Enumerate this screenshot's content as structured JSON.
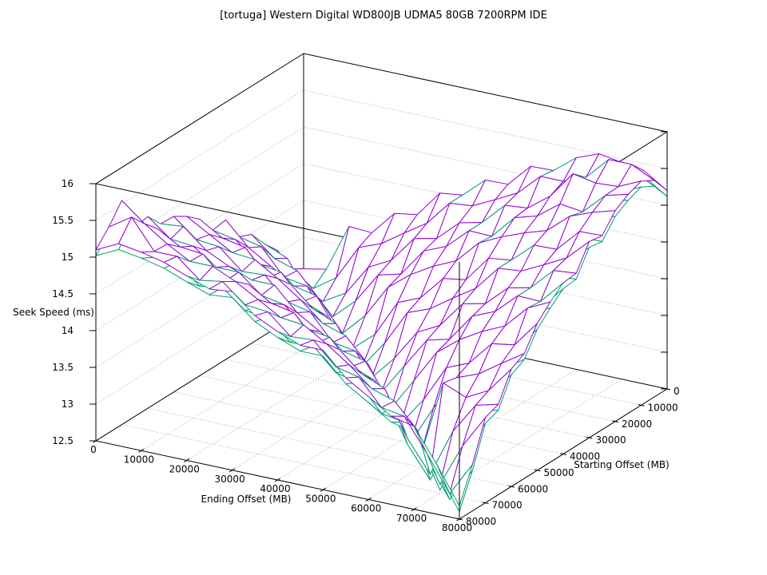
{
  "chart_data": {
    "type": "surface3d",
    "title": "[tortuga] Western Digital WD800JB UDMA5 80GB 7200RPM IDE",
    "xlabel": "Ending Offset (MB)",
    "ylabel": "Starting Offset (MB)",
    "zlabel": "Seek Speed (ms)",
    "x_ticks": [
      0,
      10000,
      20000,
      30000,
      40000,
      50000,
      60000,
      70000,
      80000
    ],
    "y_ticks": [
      0,
      10000,
      20000,
      30000,
      40000,
      50000,
      60000,
      70000,
      80000
    ],
    "z_ticks": [
      12.5,
      13,
      13.5,
      14,
      14.5,
      15,
      15.5,
      16
    ],
    "zlim": [
      12.5,
      16
    ],
    "grid": "dotted",
    "hidden3d": true,
    "legend": "none",
    "colors": {
      "surface_top": "#9400D3",
      "surface_underside": "#009E73",
      "gridline": "#a6a6a6",
      "border": "#000000",
      "background": "#ffffff",
      "text": "#000000"
    },
    "shadow_surface_offset": -0.08,
    "x": [
      0,
      5000,
      10000,
      15000,
      20000,
      25000,
      30000,
      35000,
      40000,
      45000,
      50000,
      55000,
      60000,
      65000,
      70000,
      75000,
      80000
    ],
    "y": [
      0,
      5000,
      10000,
      15000,
      20000,
      25000,
      30000,
      35000,
      40000,
      45000,
      50000,
      55000,
      60000,
      65000,
      70000,
      75000,
      80000
    ],
    "z_grid": [
      [
        13.07,
        13.18,
        13.54,
        13.74,
        13.98,
        14.06,
        14.4,
        14.37,
        14.63,
        14.78,
        14.89,
        14.9,
        15.11,
        15.07,
        15.55,
        15.3,
        15.1
      ],
      [
        13.13,
        12.98,
        13.13,
        13.61,
        13.72,
        13.99,
        14.09,
        14.31,
        14.44,
        14.6,
        14.64,
        14.93,
        14.87,
        15.12,
        15.3,
        15.5,
        15.25
      ],
      [
        13.78,
        13.19,
        12.98,
        13.12,
        13.62,
        13.64,
        13.9,
        14.04,
        14.38,
        14.42,
        14.61,
        14.67,
        14.84,
        14.94,
        15.09,
        15.1,
        15.2
      ],
      [
        13.76,
        13.67,
        13.16,
        12.95,
        13.29,
        13.59,
        13.7,
        14.0,
        14.03,
        14.39,
        14.34,
        14.52,
        14.62,
        14.91,
        14.92,
        15.1,
        15.13
      ],
      [
        14.09,
        13.79,
        13.58,
        13.23,
        12.9,
        13.15,
        13.63,
        13.67,
        14.01,
        14.2,
        14.36,
        14.4,
        14.62,
        14.61,
        14.92,
        14.84,
        15.01
      ],
      [
        14.14,
        14.0,
        13.74,
        13.65,
        13.21,
        12.87,
        13.18,
        13.54,
        13.74,
        13.98,
        14.06,
        14.4,
        14.37,
        14.63,
        14.78,
        14.89,
        14.9
      ],
      [
        14.5,
        14.2,
        14.1,
        13.73,
        13.66,
        13.13,
        12.8,
        13.13,
        13.61,
        13.72,
        13.99,
        14.09,
        14.31,
        14.44,
        14.6,
        14.64,
        14.93
      ],
      [
        14.54,
        14.54,
        14.17,
        14.11,
        13.9,
        13.63,
        13.19,
        12.83,
        13.12,
        13.62,
        13.64,
        13.9,
        14.04,
        14.38,
        14.42,
        14.61,
        14.67
      ],
      [
        14.81,
        14.57,
        14.45,
        14.24,
        14.08,
        13.76,
        13.67,
        13.16,
        12.81,
        13.29,
        13.59,
        13.7,
        14.0,
        14.03,
        14.39,
        14.34,
        14.52
      ],
      [
        14.82,
        14.72,
        14.52,
        14.52,
        14.22,
        14.09,
        13.79,
        13.58,
        13.23,
        12.77,
        13.15,
        13.63,
        13.67,
        14.01,
        14.2,
        14.36,
        14.4
      ],
      [
        15.13,
        14.88,
        14.82,
        14.51,
        14.53,
        14.14,
        14.0,
        13.74,
        13.65,
        13.21,
        12.74,
        13.18,
        13.54,
        13.74,
        13.98,
        14.06,
        14.4
      ],
      [
        15.14,
        15.17,
        14.85,
        14.83,
        14.68,
        14.5,
        14.2,
        14.1,
        13.73,
        13.66,
        13.13,
        12.66,
        13.13,
        13.61,
        13.72,
        13.99,
        14.09
      ],
      [
        15.38,
        15.17,
        15.08,
        14.92,
        14.8,
        14.54,
        14.54,
        14.17,
        14.11,
        13.9,
        13.63,
        13.19,
        12.65,
        13.0,
        13.62,
        13.64,
        13.9
      ],
      [
        15.5,
        15.29,
        15.45,
        15.15,
        14.9,
        14.81,
        14.57,
        14.45,
        14.24,
        14.08,
        13.76,
        13.67,
        13.71,
        12.58,
        13.29,
        13.59,
        13.7
      ],
      [
        15.45,
        15.6,
        15.39,
        15.11,
        15.16,
        14.82,
        14.72,
        14.52,
        14.52,
        14.22,
        14.09,
        13.79,
        13.58,
        13.23,
        12.62,
        13.15,
        13.63
      ],
      [
        15.4,
        15.6,
        15.41,
        15.4,
        15.28,
        15.13,
        14.88,
        14.82,
        14.51,
        14.53,
        14.14,
        14.0,
        13.74,
        13.65,
        13.21,
        12.67,
        13.18
      ],
      [
        15.2,
        15.45,
        15.55,
        15.48,
        15.37,
        15.14,
        15.17,
        14.85,
        14.83,
        14.68,
        14.5,
        14.2,
        14.1,
        13.73,
        13.66,
        13.13,
        12.68
      ]
    ]
  }
}
